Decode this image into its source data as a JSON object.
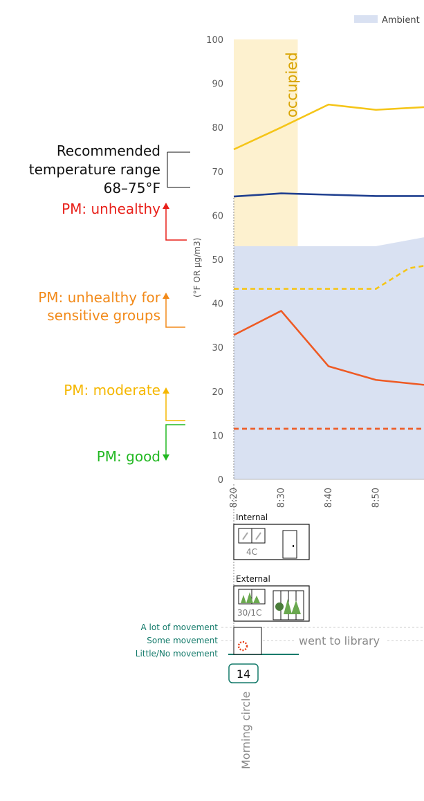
{
  "chart_data": {
    "type": "line",
    "legend": {
      "position": "top",
      "entries": [
        "Ambient"
      ]
    },
    "ylabel": "(°F OR µg/m3)",
    "ylim": [
      0,
      100
    ],
    "yticks": [
      0,
      10,
      20,
      30,
      40,
      50,
      60,
      70,
      80,
      90,
      100
    ],
    "categories": [
      "8:20",
      "8:30",
      "8:40",
      "8:50"
    ],
    "x_minutes": [
      0,
      10,
      20,
      30,
      40
    ],
    "occupied": {
      "label": "occupied",
      "from_minute": 0,
      "to_minute": 13.5
    },
    "series": [
      {
        "style": "area",
        "color": "#d9e1f2",
        "x": [
          0,
          10,
          20,
          30,
          40
        ],
        "values": [
          53,
          53,
          53,
          53,
          55
        ]
      },
      {
        "style": "solid",
        "color": "#f5c518",
        "x": [
          0,
          10,
          20,
          30,
          40
        ],
        "values": [
          75,
          80,
          85.2,
          84,
          84.6
        ]
      },
      {
        "style": "solid",
        "color": "#1f3f8f",
        "x": [
          0,
          10,
          20,
          30,
          40
        ],
        "values": [
          64.3,
          65,
          64.7,
          64.4,
          64.4
        ]
      },
      {
        "style": "dashed",
        "color": "#f5c518",
        "x": [
          0,
          10,
          20,
          30,
          37,
          40
        ],
        "values": [
          43.3,
          43.3,
          43.3,
          43.3,
          48,
          48.5
        ]
      },
      {
        "style": "solid",
        "color": "#ee5a24",
        "x": [
          0,
          10,
          20,
          30,
          40
        ],
        "values": [
          32.8,
          38.3,
          25.7,
          22.6,
          21.5
        ]
      },
      {
        "style": "dashed",
        "color": "#ee5a24",
        "x": [
          0,
          10,
          20,
          30,
          40
        ],
        "values": [
          11.5,
          11.5,
          11.5,
          11.5,
          11.5
        ]
      }
    ]
  },
  "annotations": {
    "temp_range": [
      "Recommended",
      "temperature range",
      "68–75°F"
    ],
    "pm_unhealthy": "PM: unhealthy",
    "pm_sensitive": [
      "PM: unhealthy for",
      "sensitive groups"
    ],
    "pm_moderate": "PM: moderate",
    "pm_good": "PM: good",
    "colors": {
      "unhealthy": "#e8201a",
      "sensitive": "#f28a1a",
      "moderate": "#f5b700",
      "good": "#22b822"
    }
  },
  "panels": {
    "internal": {
      "title": "Internal",
      "window_label": "4C"
    },
    "external": {
      "title": "External",
      "window_label": "30/1C"
    }
  },
  "movement": {
    "levels": [
      "A lot of movement",
      "Some movement",
      "Little/No movement"
    ],
    "note": "went to library"
  },
  "activity": {
    "count": "14",
    "label": "Morning circle"
  }
}
